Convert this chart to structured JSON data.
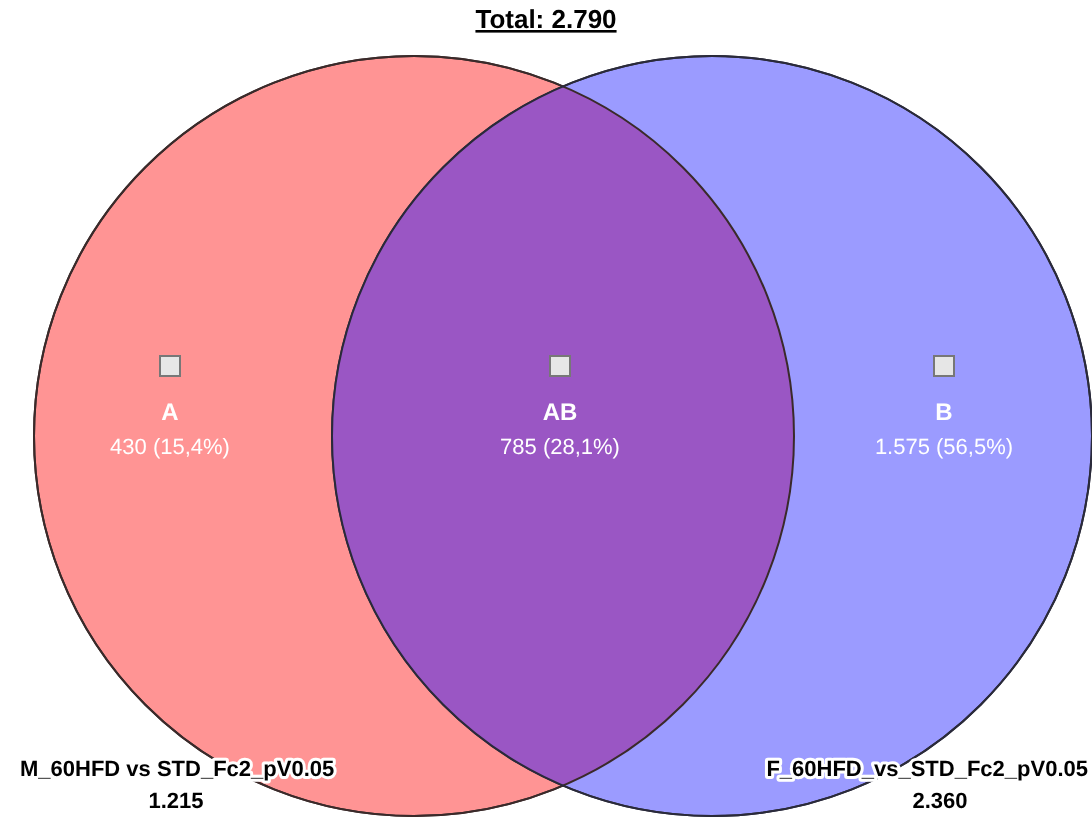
{
  "chart_data": {
    "type": "other",
    "title": "Total: 2.790",
    "categories": [
      "A",
      "AB",
      "B"
    ],
    "values": [
      430,
      785,
      1575
    ],
    "value_labels": [
      "430 (15,4%)",
      "785 (28,1%)",
      "1.575 (56,5%)"
    ],
    "colors": [
      "#ff9494",
      "#9a56c4",
      "#9b9bff"
    ],
    "annotations": [
      "M_60HFD vs STD_Fc2_pV0.05",
      "1.215",
      "F_60HFD_vs_STD_Fc2_pV0.05",
      "2.360"
    ]
  }
}
